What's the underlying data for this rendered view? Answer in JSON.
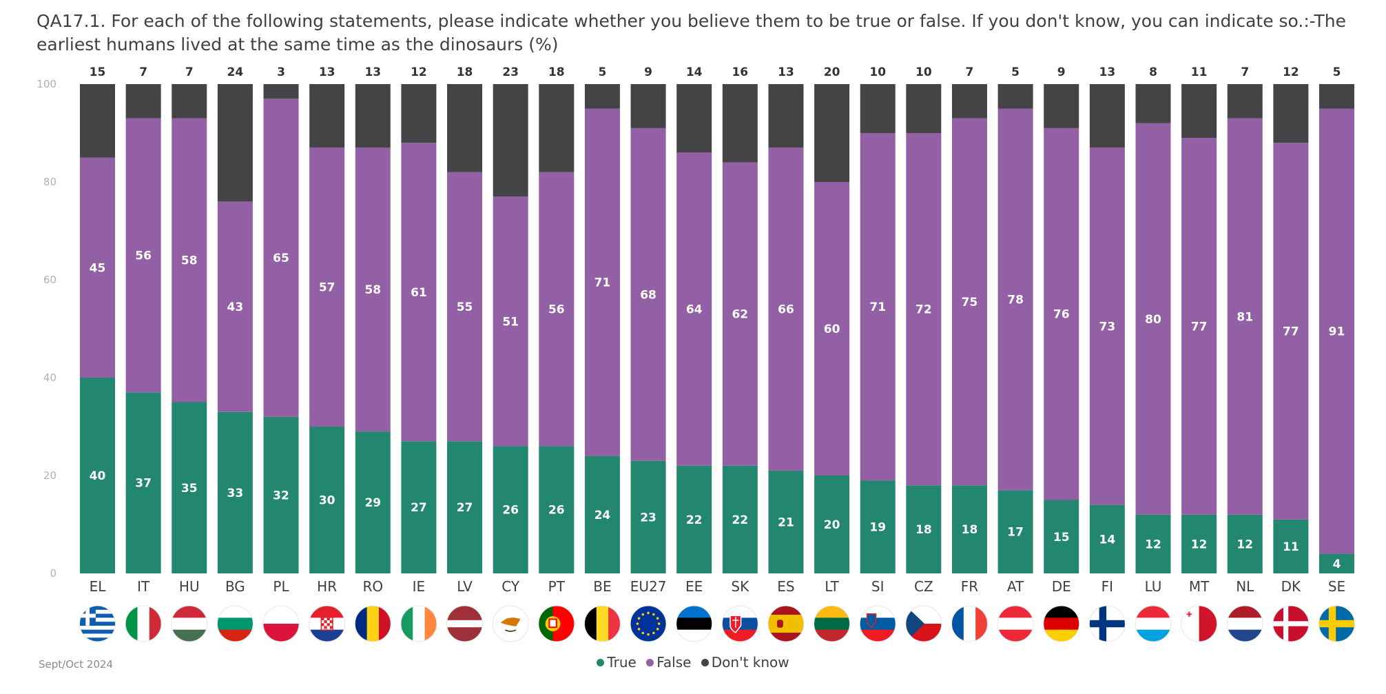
{
  "chart_data": {
    "type": "bar",
    "stacked": true,
    "title": "QA17.1. For each of the following statements, please indicate whether you believe them to be true or false. If you don't know, you can indicate so.:-The earliest humans lived at the same time as the dinosaurs (%)",
    "categories": [
      "EL",
      "IT",
      "HU",
      "BG",
      "PL",
      "HR",
      "RO",
      "IE",
      "LV",
      "CY",
      "PT",
      "BE",
      "EU27",
      "EE",
      "SK",
      "ES",
      "LT",
      "SI",
      "CZ",
      "FR",
      "AT",
      "DE",
      "FI",
      "LU",
      "MT",
      "NL",
      "DK",
      "SE"
    ],
    "series": [
      {
        "name": "True",
        "color": "#23876f",
        "values": [
          40,
          37,
          35,
          33,
          32,
          30,
          29,
          27,
          27,
          26,
          26,
          24,
          23,
          22,
          22,
          21,
          20,
          19,
          18,
          18,
          17,
          15,
          14,
          12,
          12,
          12,
          11,
          4
        ]
      },
      {
        "name": "False",
        "color": "#935fa5",
        "values": [
          45,
          56,
          58,
          43,
          65,
          57,
          58,
          61,
          55,
          51,
          56,
          71,
          68,
          64,
          62,
          66,
          60,
          71,
          72,
          75,
          78,
          76,
          73,
          80,
          77,
          81,
          77,
          91
        ]
      },
      {
        "name": "Don't know",
        "color": "#444446",
        "values": [
          15,
          7,
          7,
          24,
          3,
          13,
          13,
          12,
          18,
          23,
          18,
          5,
          9,
          14,
          16,
          13,
          20,
          10,
          10,
          7,
          5,
          9,
          13,
          8,
          11,
          7,
          12,
          5
        ]
      }
    ],
    "ylim": [
      0,
      100
    ],
    "yticks": [
      0,
      20,
      40,
      60,
      80,
      100
    ],
    "legend_position": "bottom-center",
    "grid": false
  },
  "flags": [
    "flag-greece",
    "flag-italy",
    "flag-hungary",
    "flag-bulgaria",
    "flag-poland",
    "flag-croatia",
    "flag-romania",
    "flag-ireland",
    "flag-latvia",
    "flag-cyprus",
    "flag-portugal",
    "flag-belgium",
    "flag-eu",
    "flag-estonia",
    "flag-slovakia",
    "flag-spain",
    "flag-lithuania",
    "flag-slovenia",
    "flag-czechia",
    "flag-france",
    "flag-austria",
    "flag-germany",
    "flag-finland",
    "flag-luxembourg",
    "flag-malta",
    "flag-netherlands",
    "flag-denmark",
    "flag-sweden"
  ],
  "footnote": "Sept/Oct 2024"
}
